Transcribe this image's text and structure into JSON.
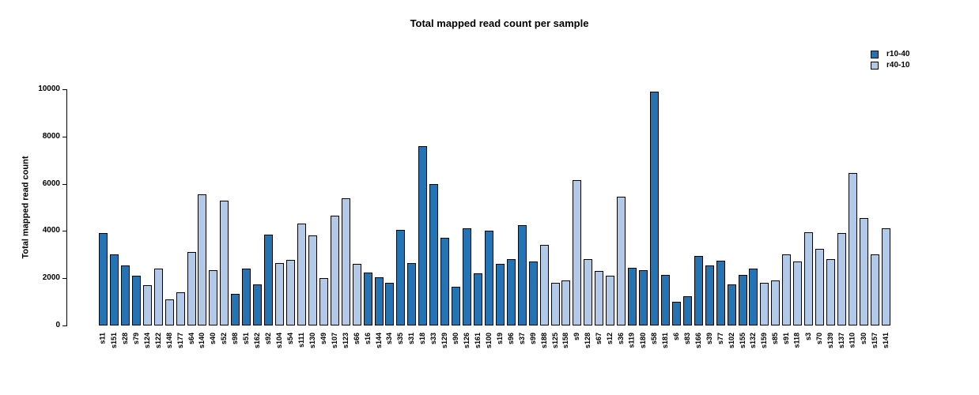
{
  "chart_data": {
    "type": "bar",
    "title": "Total mapped read count per sample",
    "xlabel": "",
    "ylabel": "Total mapped read count",
    "ylim": [
      0,
      10000
    ],
    "yticks": [
      0,
      2000,
      4000,
      6000,
      8000,
      10000
    ],
    "grid": false,
    "legend_position": "top-right",
    "x_tick_rotation": 90,
    "series": [
      {
        "name": "r10-40",
        "color": "#2473b3"
      },
      {
        "name": "r40-10",
        "color": "#b3c9e8"
      }
    ],
    "samples": [
      {
        "label": "s11",
        "group": "r10-40",
        "value": 3900
      },
      {
        "label": "s151",
        "group": "r10-40",
        "value": 3000
      },
      {
        "label": "s28",
        "group": "r10-40",
        "value": 2550
      },
      {
        "label": "s79",
        "group": "r10-40",
        "value": 2100
      },
      {
        "label": "s124",
        "group": "r40-10",
        "value": 1700
      },
      {
        "label": "s122",
        "group": "r40-10",
        "value": 2400
      },
      {
        "label": "s148",
        "group": "r40-10",
        "value": 1100
      },
      {
        "label": "s177",
        "group": "r40-10",
        "value": 1400
      },
      {
        "label": "s64",
        "group": "r40-10",
        "value": 3100
      },
      {
        "label": "s140",
        "group": "r40-10",
        "value": 5550
      },
      {
        "label": "s40",
        "group": "r40-10",
        "value": 2330
      },
      {
        "label": "s52",
        "group": "r40-10",
        "value": 5300
      },
      {
        "label": "s98",
        "group": "r10-40",
        "value": 1350
      },
      {
        "label": "s51",
        "group": "r10-40",
        "value": 2400
      },
      {
        "label": "s162",
        "group": "r10-40",
        "value": 1750
      },
      {
        "label": "s92",
        "group": "r10-40",
        "value": 3850
      },
      {
        "label": "s104",
        "group": "r40-10",
        "value": 2650
      },
      {
        "label": "s54",
        "group": "r40-10",
        "value": 2780
      },
      {
        "label": "s111",
        "group": "r40-10",
        "value": 4300
      },
      {
        "label": "s130",
        "group": "r40-10",
        "value": 3800
      },
      {
        "label": "s49",
        "group": "r40-10",
        "value": 2000
      },
      {
        "label": "s107",
        "group": "r40-10",
        "value": 4650
      },
      {
        "label": "s123",
        "group": "r40-10",
        "value": 5400
      },
      {
        "label": "s66",
        "group": "r40-10",
        "value": 2600
      },
      {
        "label": "s16",
        "group": "r10-40",
        "value": 2250
      },
      {
        "label": "s144",
        "group": "r10-40",
        "value": 2050
      },
      {
        "label": "s34",
        "group": "r10-40",
        "value": 1800
      },
      {
        "label": "s35",
        "group": "r10-40",
        "value": 4050
      },
      {
        "label": "s31",
        "group": "r10-40",
        "value": 2650
      },
      {
        "label": "s18",
        "group": "r10-40",
        "value": 7600
      },
      {
        "label": "s33",
        "group": "r10-40",
        "value": 6000
      },
      {
        "label": "s129",
        "group": "r10-40",
        "value": 3700
      },
      {
        "label": "s90",
        "group": "r10-40",
        "value": 1650
      },
      {
        "label": "s126",
        "group": "r10-40",
        "value": 4100
      },
      {
        "label": "s161",
        "group": "r10-40",
        "value": 2200
      },
      {
        "label": "s100",
        "group": "r10-40",
        "value": 4000
      },
      {
        "label": "s19",
        "group": "r10-40",
        "value": 2600
      },
      {
        "label": "s96",
        "group": "r10-40",
        "value": 2800
      },
      {
        "label": "s37",
        "group": "r10-40",
        "value": 4250
      },
      {
        "label": "s99",
        "group": "r10-40",
        "value": 2700
      },
      {
        "label": "s188",
        "group": "r40-10",
        "value": 3400
      },
      {
        "label": "s125",
        "group": "r40-10",
        "value": 1800
      },
      {
        "label": "s158",
        "group": "r40-10",
        "value": 1900
      },
      {
        "label": "s9",
        "group": "r40-10",
        "value": 6150
      },
      {
        "label": "s128",
        "group": "r40-10",
        "value": 2800
      },
      {
        "label": "s67",
        "group": "r40-10",
        "value": 2300
      },
      {
        "label": "s12",
        "group": "r40-10",
        "value": 2100
      },
      {
        "label": "s36",
        "group": "r40-10",
        "value": 5450
      },
      {
        "label": "s119",
        "group": "r10-40",
        "value": 2450
      },
      {
        "label": "s180",
        "group": "r10-40",
        "value": 2350
      },
      {
        "label": "s58",
        "group": "r10-40",
        "value": 9900
      },
      {
        "label": "s181",
        "group": "r10-40",
        "value": 2150
      },
      {
        "label": "s6",
        "group": "r10-40",
        "value": 1000
      },
      {
        "label": "s83",
        "group": "r10-40",
        "value": 1250
      },
      {
        "label": "s166",
        "group": "r10-40",
        "value": 2950
      },
      {
        "label": "s39",
        "group": "r10-40",
        "value": 2550
      },
      {
        "label": "s77",
        "group": "r10-40",
        "value": 2750
      },
      {
        "label": "s102",
        "group": "r10-40",
        "value": 1750
      },
      {
        "label": "s155",
        "group": "r10-40",
        "value": 2150
      },
      {
        "label": "s132",
        "group": "r10-40",
        "value": 2400
      },
      {
        "label": "s159",
        "group": "r40-10",
        "value": 1800
      },
      {
        "label": "s85",
        "group": "r40-10",
        "value": 1900
      },
      {
        "label": "s91",
        "group": "r40-10",
        "value": 3000
      },
      {
        "label": "s118",
        "group": "r40-10",
        "value": 2700
      },
      {
        "label": "s3",
        "group": "r40-10",
        "value": 3950
      },
      {
        "label": "s70",
        "group": "r40-10",
        "value": 3250
      },
      {
        "label": "s139",
        "group": "r40-10",
        "value": 2800
      },
      {
        "label": "s137",
        "group": "r40-10",
        "value": 3900
      },
      {
        "label": "s110",
        "group": "r40-10",
        "value": 6450
      },
      {
        "label": "s30",
        "group": "r40-10",
        "value": 4550
      },
      {
        "label": "s157",
        "group": "r40-10",
        "value": 3000
      },
      {
        "label": "s141",
        "group": "r40-10",
        "value": 4100
      }
    ]
  }
}
